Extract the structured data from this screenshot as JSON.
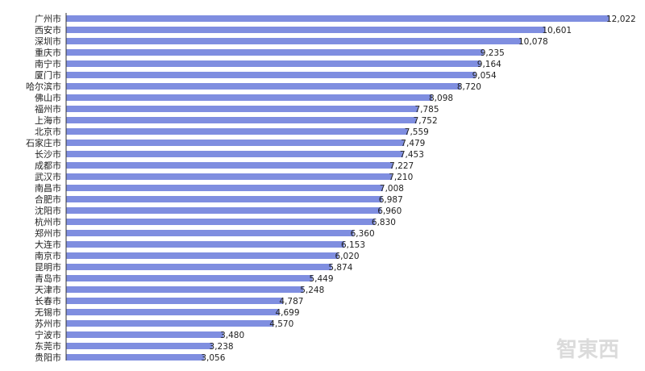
{
  "chart_data": {
    "type": "bar",
    "orientation": "horizontal",
    "categories": [
      "广州市",
      "西安市",
      "深圳市",
      "重庆市",
      "南宁市",
      "厦门市",
      "哈尔滨市",
      "佛山市",
      "福州市",
      "上海市",
      "北京市",
      "石家庄市",
      "长沙市",
      "成都市",
      "武汉市",
      "南昌市",
      "合肥市",
      "沈阳市",
      "杭州市",
      "郑州市",
      "大连市",
      "南京市",
      "昆明市",
      "青岛市",
      "天津市",
      "长春市",
      "无锡市",
      "苏州市",
      "宁波市",
      "东莞市",
      "贵阳市"
    ],
    "values": [
      12022,
      10601,
      10078,
      9235,
      9164,
      9054,
      8720,
      8098,
      7785,
      7752,
      7559,
      7479,
      7453,
      7227,
      7210,
      7008,
      6987,
      6960,
      6830,
      6360,
      6153,
      6020,
      5874,
      5449,
      5248,
      4787,
      4699,
      4570,
      3480,
      3238,
      3056
    ],
    "value_labels": [
      "12,022",
      "10,601",
      "10,078",
      "9,235",
      "9,164",
      "9,054",
      "8,720",
      "8,098",
      "7,785",
      "7,752",
      "7,559",
      "7,479",
      "7,453",
      "7,227",
      "7,210",
      "7,008",
      "6,987",
      "6,960",
      "6,830",
      "6,360",
      "6,153",
      "6,020",
      "5,874",
      "5,449",
      "5,248",
      "4,787",
      "4,699",
      "4,570",
      "3,480",
      "3,238",
      "3,056"
    ],
    "title": "",
    "xlabel": "",
    "ylabel": "",
    "xlim": [
      0,
      12022
    ],
    "grid": false,
    "legend": "none",
    "bar_color": "#7f8ee0",
    "axis_color": "#333333"
  },
  "watermark": {
    "text": "智東西"
  }
}
